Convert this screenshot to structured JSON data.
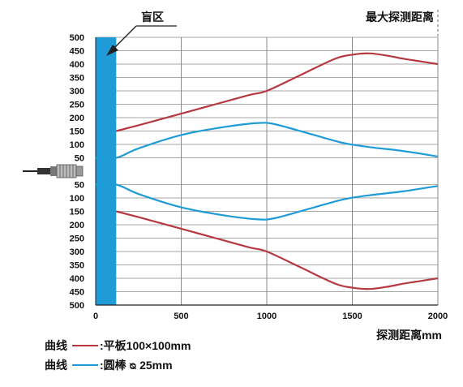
{
  "chart_data": {
    "type": "line",
    "title": "最大探测距离",
    "xlabel": "探测距离mm",
    "ylabel": "",
    "xlim": [
      0,
      2000
    ],
    "ylim_upper": [
      0,
      500
    ],
    "ylim_lower": [
      0,
      500
    ],
    "x_ticks": [
      "0",
      "500",
      "1000",
      "1500",
      "2000"
    ],
    "y_ticks_upper": [
      "500",
      "450",
      "400",
      "350",
      "300",
      "250",
      "200",
      "150",
      "100",
      "50"
    ],
    "y_ticks_lower": [
      "50",
      "100",
      "150",
      "200",
      "250",
      "300",
      "350",
      "400",
      "450",
      "500"
    ],
    "blind_zone": {
      "label": "盲区",
      "x_range": [
        0,
        120
      ]
    },
    "grid": true,
    "series": [
      {
        "name": "平板100×100mm",
        "color": "#b5393f",
        "x": [
          120,
          300,
          500,
          700,
          900,
          1000,
          1200,
          1400,
          1500,
          1600,
          1700,
          1800,
          1900,
          2000
        ],
        "upper": [
          150,
          180,
          215,
          250,
          285,
          300,
          360,
          420,
          435,
          440,
          432,
          420,
          410,
          400
        ],
        "lower": [
          150,
          180,
          215,
          250,
          285,
          300,
          360,
          420,
          435,
          440,
          432,
          420,
          410,
          400
        ]
      },
      {
        "name": "圆棒Φ25mm",
        "color": "#1f9bd7",
        "x": [
          0,
          120,
          250,
          500,
          750,
          950,
          1050,
          1250,
          1450,
          1600,
          1800,
          2000
        ],
        "upper": [
          50,
          50,
          85,
          135,
          165,
          180,
          175,
          140,
          105,
          90,
          75,
          55
        ],
        "lower": [
          50,
          50,
          85,
          135,
          165,
          180,
          175,
          140,
          105,
          90,
          75,
          55
        ]
      }
    ]
  },
  "legend": [
    {
      "prefix": "曲线",
      "text": ":平板100×100mm",
      "color": "#b5393f"
    },
    {
      "prefix": "曲线",
      "text": ":圆棒 ᴓ 25mm",
      "color": "#1f9bd7"
    }
  ],
  "colors": {
    "blind_zone": "#1f9bd7",
    "grid": "#8a8a8a",
    "axis": "#222222"
  },
  "icons": {
    "sensor": "proximity-sensor-icon",
    "pointer": "arrow-pointer-icon"
  }
}
